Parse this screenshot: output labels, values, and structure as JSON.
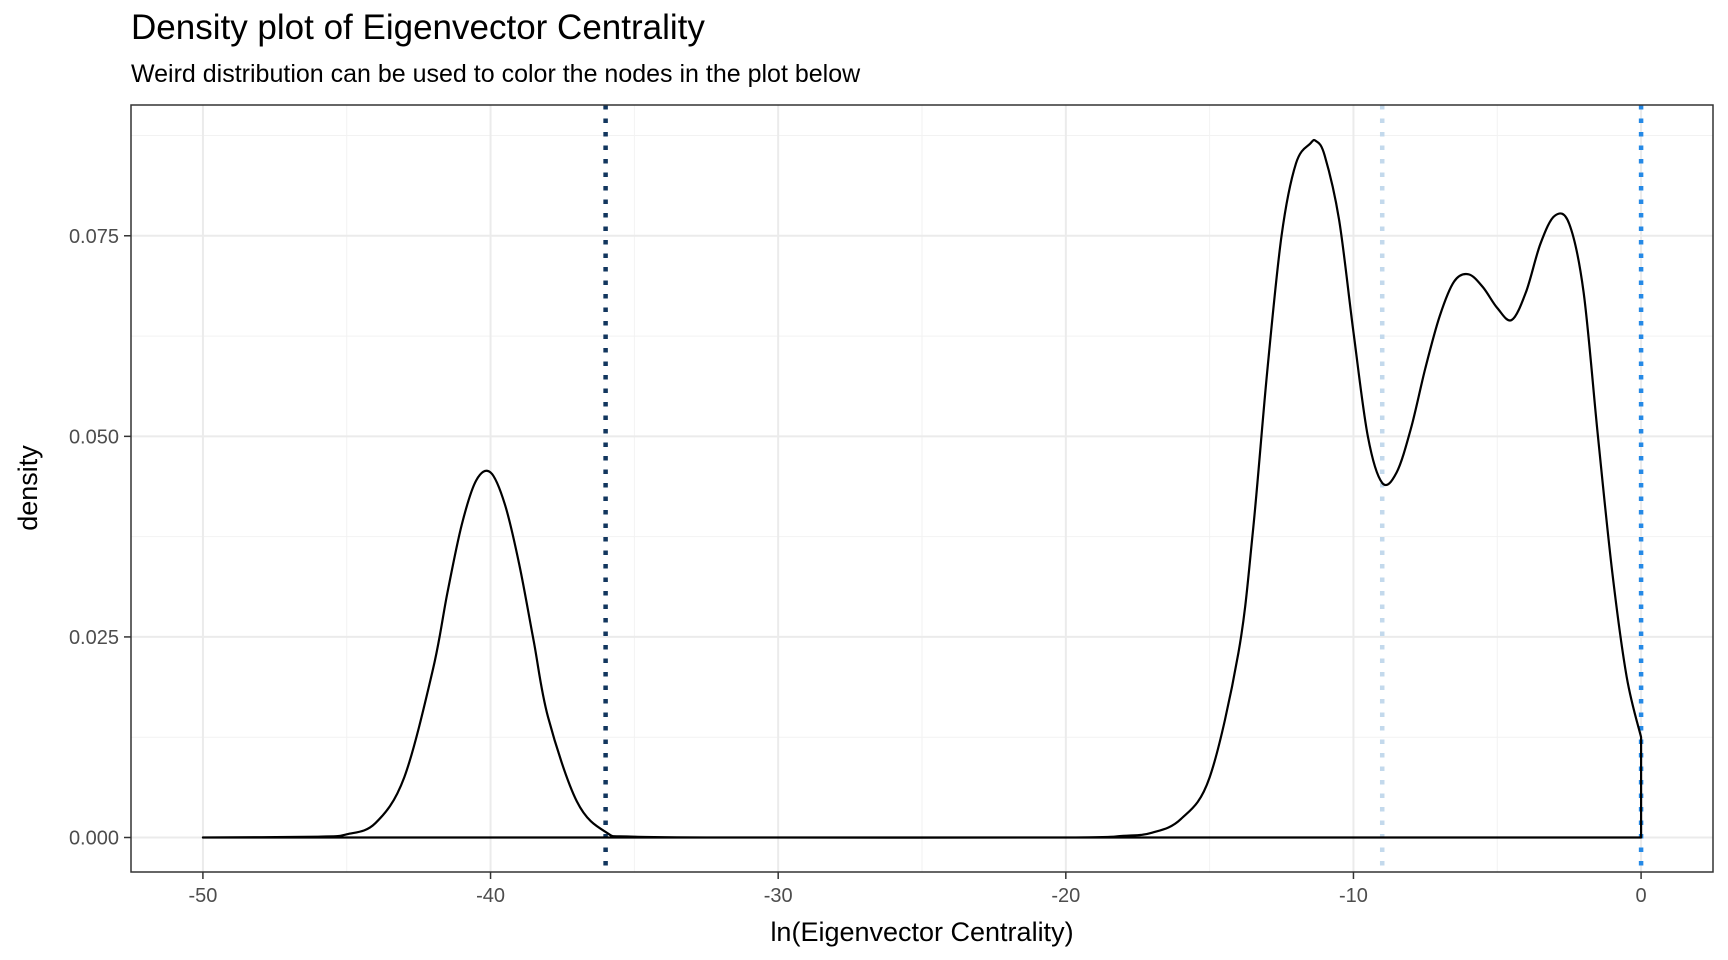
{
  "chart_data": {
    "type": "line",
    "title": "Density plot of Eigenvector Centrality",
    "subtitle": "Weird distribution can be used to color the nodes in the plot below",
    "xlabel": "ln(Eigenvector Centrality)",
    "ylabel": "density",
    "xlim": [
      -52.5,
      2.5
    ],
    "ylim": [
      -0.0043,
      0.0913
    ],
    "x_ticks": [
      -50,
      -40,
      -30,
      -20,
      -10,
      0
    ],
    "x_tick_labels": [
      "-50",
      "-40",
      "-30",
      "-20",
      "-10",
      "0"
    ],
    "y_ticks": [
      0,
      0.025,
      0.05,
      0.075
    ],
    "y_tick_labels": [
      "0.000",
      "0.025",
      "0.050",
      "0.075"
    ],
    "grid": true,
    "theme": "bw",
    "series": [
      {
        "color": "#000000",
        "x": [
          -50,
          -46,
          -45,
          -44,
          -43,
          -42,
          -41.5,
          -41,
          -40.5,
          -40,
          -39.5,
          -39,
          -38.5,
          -38,
          -37,
          -36,
          -35,
          -30,
          -20,
          -18,
          -17,
          -16,
          -15,
          -14,
          -13.5,
          -13,
          -12.5,
          -12,
          -11.5,
          -11.3,
          -11,
          -10.5,
          -10,
          -9.5,
          -9,
          -8.5,
          -8,
          -7.5,
          -7,
          -6.5,
          -6,
          -5.5,
          -5,
          -4.5,
          -4,
          -3.5,
          -3,
          -2.5,
          -2,
          -1.5,
          -1,
          -0.5,
          0
        ],
        "y": [
          0,
          0.0001,
          0.0004,
          0.0018,
          0.0075,
          0.021,
          0.0305,
          0.039,
          0.0445,
          0.0455,
          0.0415,
          0.034,
          0.0245,
          0.015,
          0.0045,
          0.0007,
          0.0001,
          0,
          0,
          0.0002,
          0.0006,
          0.0023,
          0.0075,
          0.023,
          0.038,
          0.058,
          0.075,
          0.084,
          0.0865,
          0.0868,
          0.085,
          0.077,
          0.063,
          0.05,
          0.0442,
          0.0455,
          0.051,
          0.0585,
          0.065,
          0.0693,
          0.0702,
          0.0686,
          0.066,
          0.0645,
          0.068,
          0.074,
          0.0775,
          0.0765,
          0.068,
          0.05,
          0.033,
          0.02,
          0.0125
        ]
      }
    ],
    "vlines": [
      {
        "x": -36,
        "color": "#12365e",
        "style": "dotted"
      },
      {
        "x": -9,
        "color": "#c3d9ec",
        "style": "dotted"
      },
      {
        "x": 0,
        "color": "#2589e6",
        "style": "dotted"
      }
    ]
  }
}
